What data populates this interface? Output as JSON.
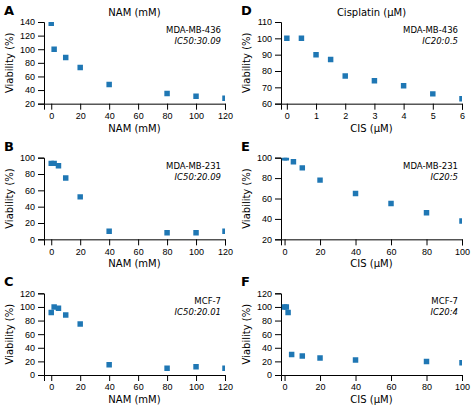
{
  "chart_data": [
    {
      "type": "scatter",
      "title": "NAM (mM)",
      "xlabel": "NAM (mM)",
      "ylabel": "Viability (%)",
      "annotations": [
        "A",
        "MDA-MB-436",
        "IC50:30.09"
      ],
      "marker": "square",
      "xlim": [
        -5,
        120
      ],
      "ylim": [
        20,
        140
      ],
      "xticks": [
        0,
        20,
        40,
        60,
        80,
        100,
        120
      ],
      "yticks": [
        20,
        40,
        60,
        80,
        100,
        120,
        140
      ],
      "x": [
        0,
        2,
        10,
        20,
        40,
        80,
        100,
        120
      ],
      "values": [
        138,
        100,
        88,
        73,
        48,
        35,
        31,
        28
      ]
    },
    {
      "type": "scatter",
      "xlabel": "NAM (mM)",
      "ylabel": "Viability (%)",
      "annotations": [
        "B",
        "MDA-MB-231",
        "IC50:20.09"
      ],
      "marker": "square",
      "xlim": [
        -5,
        120
      ],
      "ylim": [
        0,
        100
      ],
      "xticks": [
        0,
        20,
        40,
        60,
        80,
        100,
        120
      ],
      "yticks": [
        0,
        20,
        40,
        60,
        80,
        100
      ],
      "x": [
        0,
        2,
        5,
        10,
        20,
        40,
        80,
        100,
        120
      ],
      "values": [
        93,
        93,
        90,
        75,
        52,
        10,
        8,
        8,
        10
      ]
    },
    {
      "type": "scatter",
      "xlabel": "NAM (mM)",
      "ylabel": "Viability (%)",
      "annotations": [
        "C",
        "MCF-7",
        "IC50:20.01"
      ],
      "marker": "square",
      "xlim": [
        -5,
        120
      ],
      "ylim": [
        0,
        120
      ],
      "xticks": [
        0,
        20,
        40,
        60,
        80,
        100,
        120
      ],
      "yticks": [
        0,
        20,
        40,
        60,
        80,
        100,
        120
      ],
      "x": [
        0,
        2,
        5,
        10,
        20,
        40,
        80,
        100,
        120
      ],
      "values": [
        92,
        100,
        98,
        88,
        75,
        15,
        10,
        12,
        10
      ]
    },
    {
      "type": "scatter",
      "title": "Cisplatin (μM)",
      "xlabel": "CIS (μM)",
      "ylabel": "Viability (%)",
      "annotations": [
        "D",
        "MDA-MB-436",
        "IC20:0.5"
      ],
      "marker": "square",
      "xlim": [
        -0.2,
        6
      ],
      "ylim": [
        60,
        110
      ],
      "xticks": [
        0,
        1,
        2,
        3,
        4,
        5,
        6
      ],
      "yticks": [
        60,
        70,
        80,
        90,
        100,
        110
      ],
      "x": [
        0,
        0.5,
        1,
        1.5,
        2,
        3,
        4,
        5,
        6
      ],
      "values": [
        100,
        100,
        90,
        87,
        77,
        74,
        71,
        66,
        63
      ]
    },
    {
      "type": "scatter",
      "xlabel": "CIS (μM)",
      "ylabel": "Viability (%)",
      "annotations": [
        "E",
        "MDA-MB-231",
        "IC20:5"
      ],
      "marker": "square",
      "xlim": [
        -2,
        100
      ],
      "ylim": [
        20,
        100
      ],
      "xticks": [
        0,
        20,
        40,
        60,
        80,
        100
      ],
      "yticks": [
        20,
        40,
        60,
        80,
        100
      ],
      "x": [
        0,
        1,
        5,
        10,
        20,
        40,
        60,
        80,
        100
      ],
      "values": [
        100,
        100,
        96,
        90,
        78,
        65,
        55,
        46,
        38
      ]
    },
    {
      "type": "scatter",
      "xlabel": "CIS (μM)",
      "ylabel": "Viability (%)",
      "annotations": [
        "F",
        "MCF-7",
        "IC20:4"
      ],
      "marker": "square",
      "xlim": [
        -2,
        100
      ],
      "ylim": [
        0,
        120
      ],
      "xticks": [
        0,
        20,
        40,
        60,
        80,
        100
      ],
      "yticks": [
        0,
        20,
        40,
        60,
        80,
        100,
        120
      ],
      "x": [
        0,
        1,
        2,
        4,
        10,
        20,
        40,
        80,
        100
      ],
      "values": [
        100,
        100,
        92,
        30,
        28,
        25,
        22,
        20,
        18
      ]
    }
  ]
}
